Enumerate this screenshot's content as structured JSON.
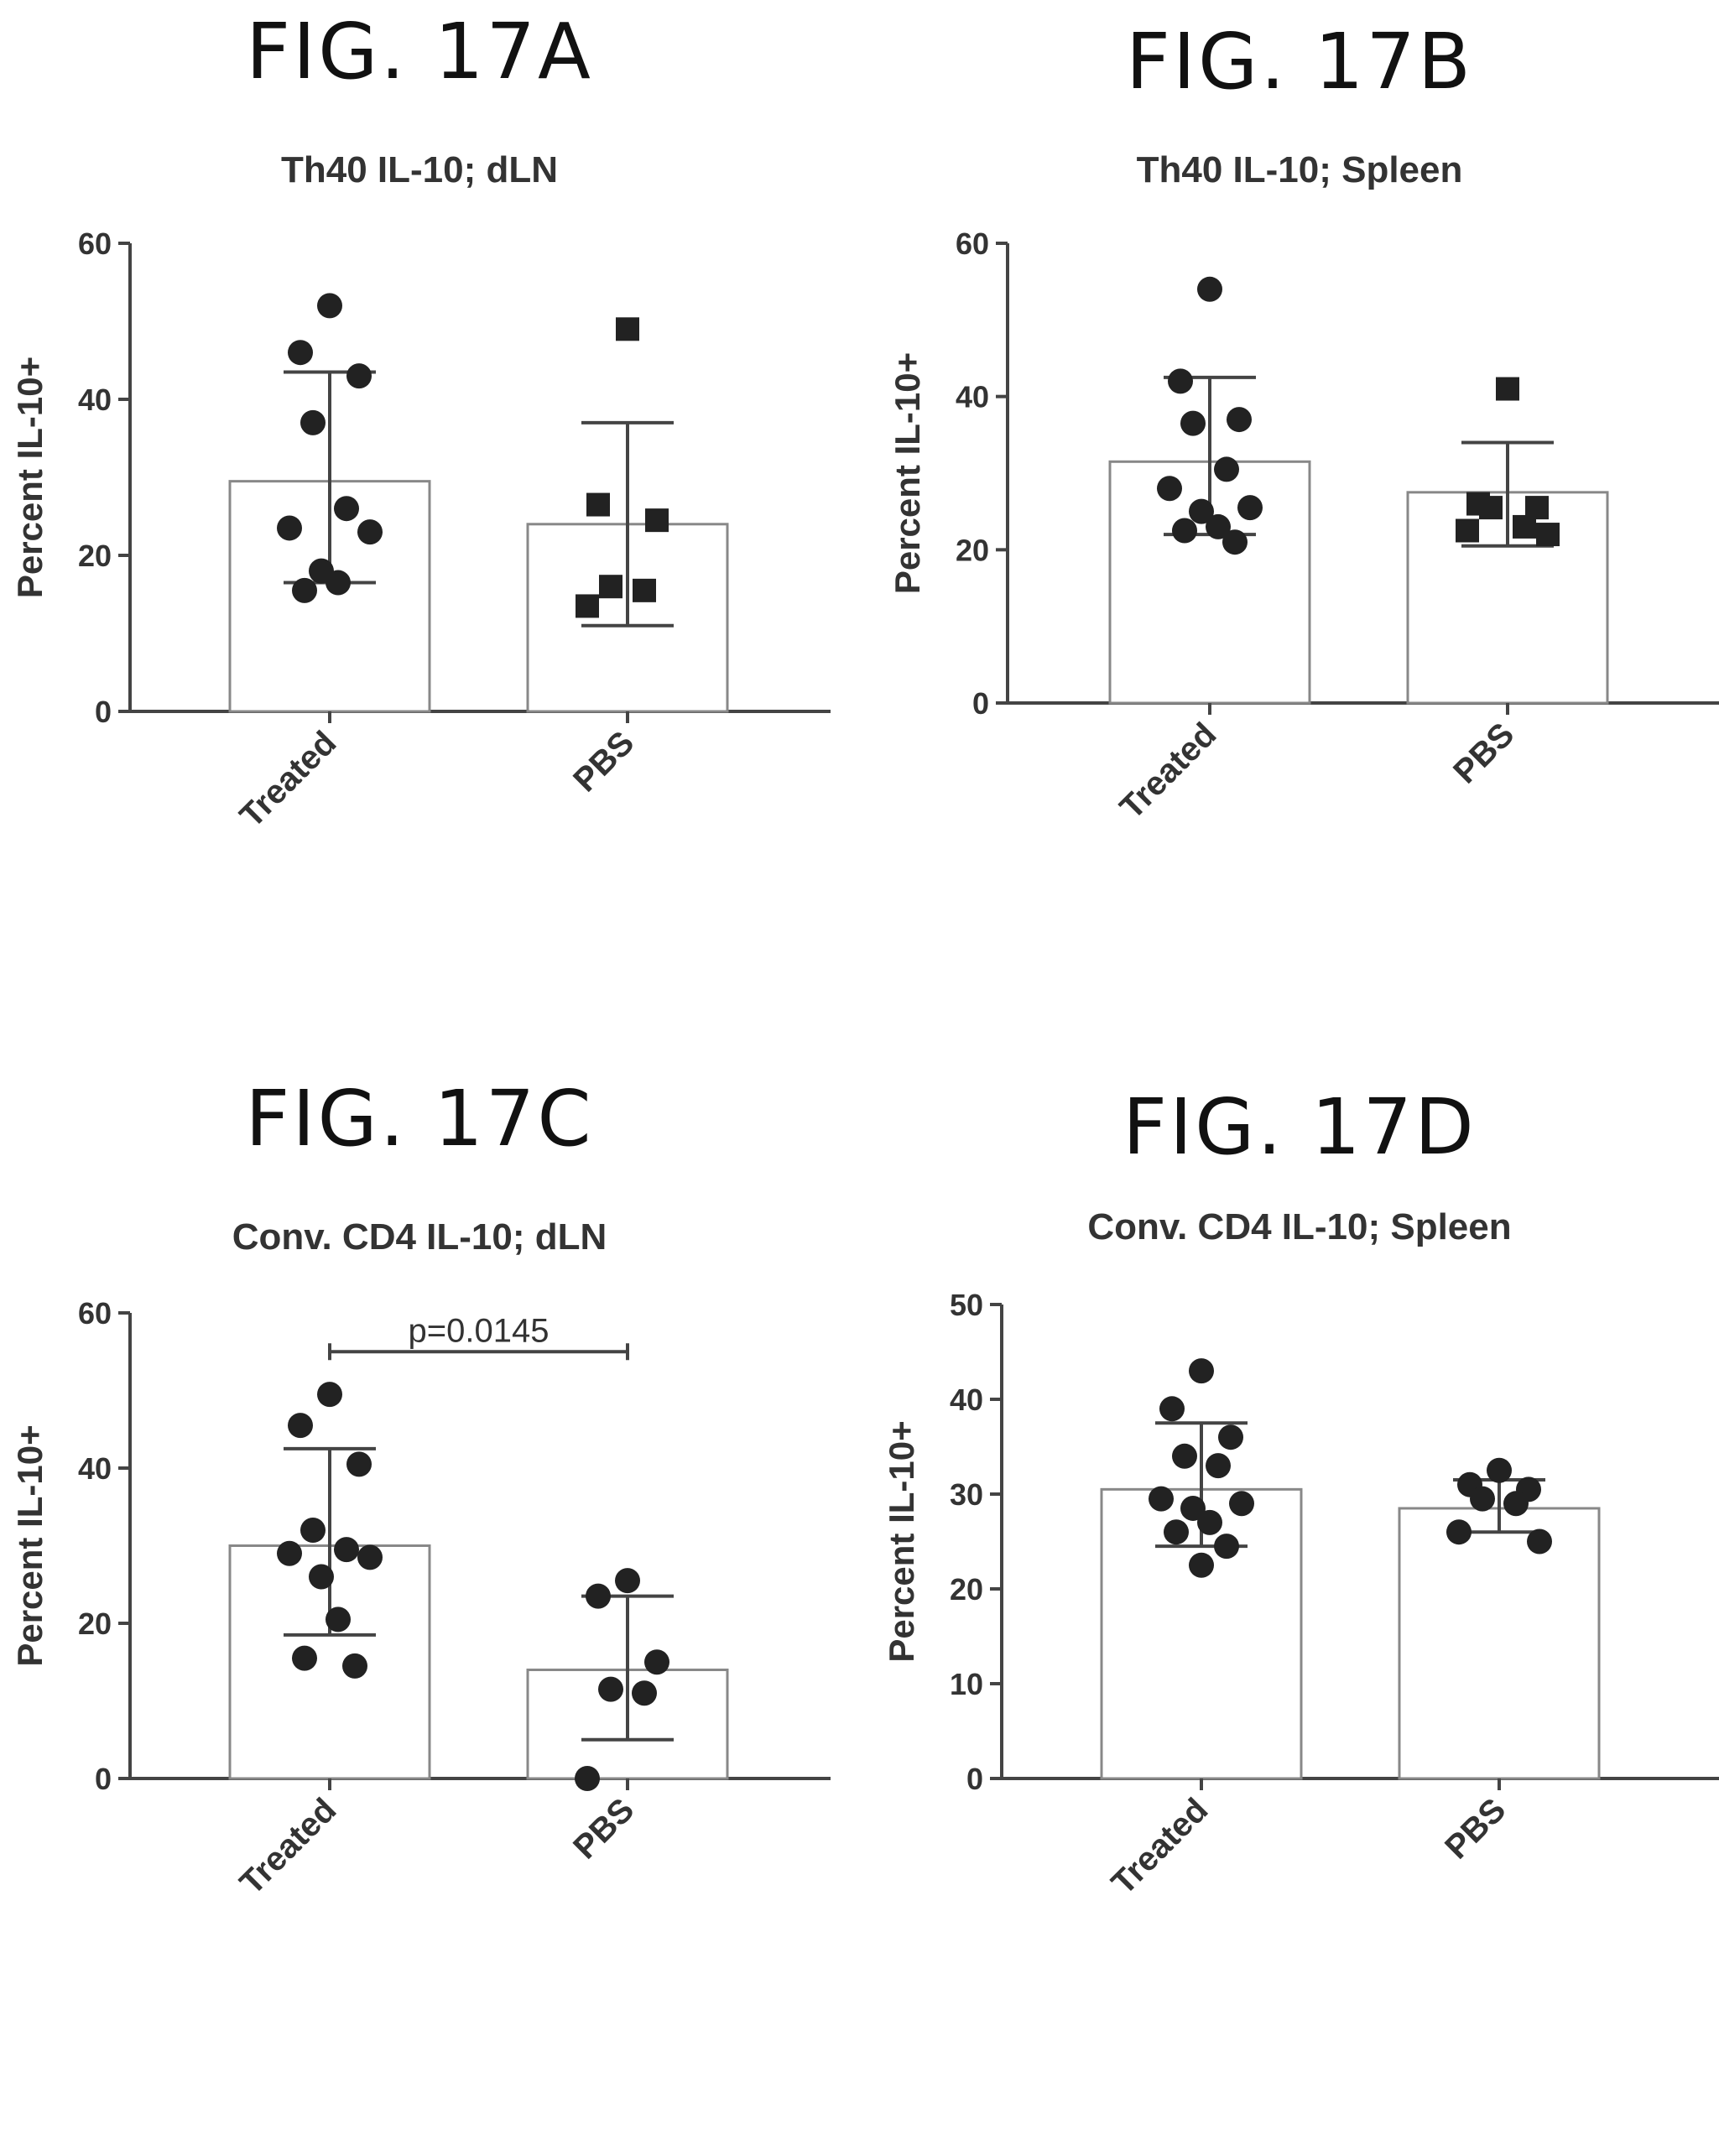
{
  "figures": [
    {
      "label": "FIG. 17A"
    },
    {
      "label": "FIG. 17B"
    },
    {
      "label": "FIG. 17C"
    },
    {
      "label": "FIG. 17D"
    }
  ],
  "chart_data": [
    {
      "type": "bar",
      "title": "Th40 IL-10; dLN",
      "ylabel": "Percent IL-10+",
      "xlabel": "",
      "ylim": [
        0,
        60
      ],
      "yticks": [
        0,
        20,
        40,
        60
      ],
      "grid": false,
      "categories": [
        "Treated",
        "PBS"
      ],
      "series": [
        {
          "values": [
            29.5,
            24
          ],
          "error": [
            [
              16.5,
              43.5
            ],
            [
              11,
              37
            ]
          ],
          "points": [
            [
              52,
              46,
              43,
              37,
              26,
              23.5,
              23,
              18,
              16.5,
              15.5
            ],
            [
              49,
              26.5,
              24.5,
              16,
              15.5,
              13.5
            ]
          ],
          "markers": [
            "circle",
            "square"
          ]
        }
      ],
      "annotation": null
    },
    {
      "type": "bar",
      "title": "Th40 IL-10; Spleen",
      "ylabel": "Percent IL-10+",
      "xlabel": "",
      "ylim": [
        0,
        60
      ],
      "yticks": [
        0,
        20,
        40,
        60
      ],
      "grid": false,
      "categories": [
        "Treated",
        "PBS"
      ],
      "series": [
        {
          "values": [
            31.5,
            27.5
          ],
          "error": [
            [
              22,
              42.5
            ],
            [
              20.5,
              34
            ]
          ],
          "points": [
            [
              54,
              42,
              37,
              36.5,
              30.5,
              28,
              25.5,
              25,
              23,
              22.5,
              21
            ],
            [
              41,
              26,
              25.5,
              25.5,
              23,
              22.5,
              22
            ]
          ],
          "markers": [
            "circle",
            "square"
          ]
        }
      ],
      "annotation": null
    },
    {
      "type": "bar",
      "title": "Conv. CD4 IL-10; dLN",
      "ylabel": "Percent IL-10+",
      "xlabel": "",
      "ylim": [
        0,
        60
      ],
      "yticks": [
        0,
        20,
        40,
        60
      ],
      "grid": false,
      "categories": [
        "Treated",
        "PBS"
      ],
      "series": [
        {
          "values": [
            30,
            14
          ],
          "error": [
            [
              18.5,
              42.5
            ],
            [
              5,
              23.5
            ]
          ],
          "points": [
            [
              49.5,
              45.5,
              40.5,
              32,
              29.5,
              29,
              28.5,
              26,
              20.5,
              15.5,
              14.5
            ],
            [
              25.5,
              23.5,
              15,
              11.5,
              11,
              0
            ]
          ],
          "markers": [
            "circle",
            "circle"
          ]
        }
      ],
      "annotation": {
        "text": "p=0.0145",
        "from": "Treated",
        "to": "PBS",
        "y": 55
      }
    },
    {
      "type": "bar",
      "title": "Conv. CD4 IL-10; Spleen",
      "ylabel": "Percent IL-10+",
      "xlabel": "",
      "ylim": [
        0,
        50
      ],
      "yticks": [
        0,
        10,
        20,
        30,
        40,
        50
      ],
      "grid": false,
      "categories": [
        "Treated",
        "PBS"
      ],
      "series": [
        {
          "values": [
            30.5,
            28.5
          ],
          "error": [
            [
              24.5,
              37.5
            ],
            [
              26,
              31.5
            ]
          ],
          "points": [
            [
              43,
              39,
              36,
              34,
              33,
              29.5,
              29,
              28.5,
              27,
              26,
              24.5,
              22.5
            ],
            [
              32.5,
              31,
              30.5,
              29.5,
              29,
              26,
              25
            ]
          ],
          "markers": [
            "circle",
            "circle"
          ]
        }
      ],
      "annotation": null
    }
  ]
}
